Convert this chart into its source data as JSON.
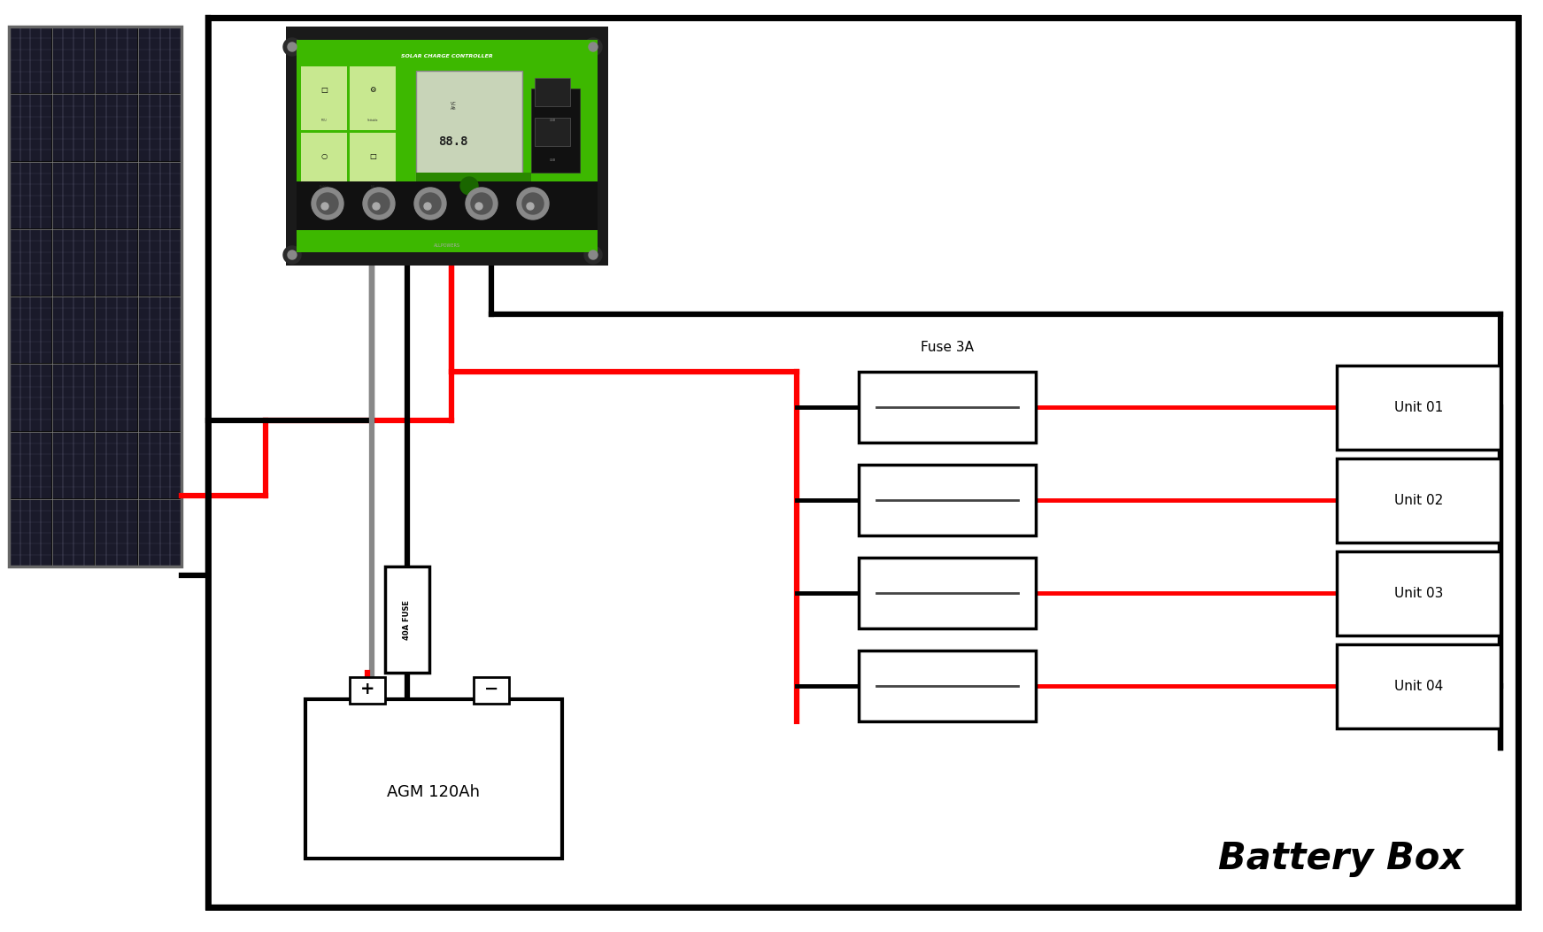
{
  "title": "Battery Box",
  "background_color": "#ffffff",
  "red_color": "#ff0000",
  "black_color": "#000000",
  "gray_color": "#888888",
  "dark_panel": "#111111",
  "ctrl_green": "#4aaa00",
  "ctrl_body": "#1a1a1a",
  "ctrl_display_bg": "#c8d8c0",
  "units": [
    "Unit 01",
    "Unit 02",
    "Unit 03",
    "Unit 04"
  ],
  "fuse_label": "Fuse 3A",
  "fuse_40a_label": "40A FUSE",
  "battery_label": "AGM 120Ah",
  "figsize": [
    17.43,
    10.53
  ],
  "dpi": 100,
  "lw": 4.5,
  "lw2": 3.5,
  "lw3": 2.5
}
